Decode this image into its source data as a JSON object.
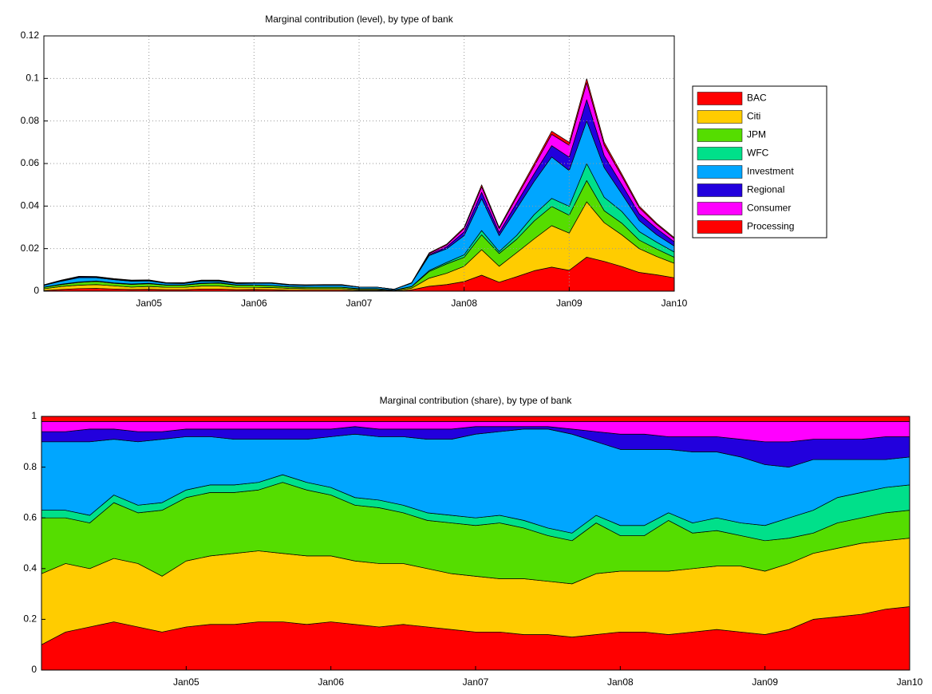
{
  "chart_data": [
    {
      "type": "area",
      "stacked": true,
      "title": "Marginal contribution (level), by type of bank",
      "x": [
        "Jan04",
        "Mar04",
        "May04",
        "Jul04",
        "Sep04",
        "Nov04",
        "Jan05",
        "Mar05",
        "May05",
        "Jul05",
        "Sep05",
        "Nov05",
        "Jan06",
        "Mar06",
        "May06",
        "Jul06",
        "Sep06",
        "Nov06",
        "Jan07",
        "Mar07",
        "May07",
        "Jul07",
        "Sep07",
        "Nov07",
        "Jan08",
        "Mar08",
        "May08",
        "Jul08",
        "Sep08",
        "Nov08",
        "Jan09",
        "Mar09",
        "May09",
        "Jul09",
        "Sep09",
        "Nov09",
        "Jan10"
      ],
      "xlim": [
        "Jan04",
        "Jan10"
      ],
      "xticks": [
        "Jan05",
        "Jan06",
        "Jan07",
        "Jan08",
        "Jan09",
        "Jan10"
      ],
      "ylim": [
        0,
        0.12
      ],
      "yticks": [
        0,
        0.02,
        0.04,
        0.06,
        0.08,
        0.1,
        0.12
      ],
      "grid": true,
      "legend": "right",
      "series": [
        {
          "name": "BAC",
          "color": "#ff0000",
          "values": [
            0.0003,
            0.0008,
            0.0012,
            0.0013,
            0.001,
            0.0008,
            0.0009,
            0.0007,
            0.0007,
            0.001,
            0.001,
            0.0007,
            0.0008,
            0.0007,
            0.0005,
            0.0005,
            0.0005,
            0.0005,
            0.0003,
            0.0003,
            0.0001,
            0.0006,
            0.0023,
            0.0031,
            0.0045,
            0.0075,
            0.0042,
            0.0068,
            0.0096,
            0.0113,
            0.0098,
            0.016,
            0.014,
            0.0116,
            0.0088,
            0.0077,
            0.0063
          ]
        },
        {
          "name": "Citi",
          "color": "#ffcc00",
          "values": [
            0.0008,
            0.0014,
            0.0016,
            0.0018,
            0.0015,
            0.0011,
            0.0013,
            0.0011,
            0.0011,
            0.0014,
            0.0014,
            0.0011,
            0.001,
            0.001,
            0.0008,
            0.0007,
            0.0007,
            0.0007,
            0.0004,
            0.0004,
            0.0002,
            0.0008,
            0.0038,
            0.0053,
            0.0072,
            0.012,
            0.0075,
            0.0113,
            0.015,
            0.0195,
            0.0175,
            0.026,
            0.0182,
            0.0149,
            0.0112,
            0.0086,
            0.0068
          ]
        },
        {
          "name": "JPM",
          "color": "#55dd00",
          "values": [
            0.0007,
            0.0009,
            0.0013,
            0.0015,
            0.0012,
            0.0013,
            0.0013,
            0.001,
            0.001,
            0.0012,
            0.0014,
            0.001,
            0.001,
            0.0009,
            0.0007,
            0.0006,
            0.0006,
            0.0006,
            0.0004,
            0.0004,
            0.0002,
            0.0007,
            0.0031,
            0.0044,
            0.0042,
            0.007,
            0.006,
            0.0063,
            0.0084,
            0.009,
            0.0084,
            0.01,
            0.0056,
            0.0055,
            0.004,
            0.0035,
            0.0028
          ]
        },
        {
          "name": "WFC",
          "color": "#00e08a",
          "values": [
            0.0001,
            0.0002,
            0.0002,
            0.0002,
            0.0002,
            0.0002,
            0.0002,
            0.0001,
            0.0001,
            0.0002,
            0.0002,
            0.0001,
            0.0001,
            0.0001,
            0.0001,
            0.0001,
            0.0001,
            0.0001,
            0.0001,
            0.0001,
            0,
            0.0001,
            0.0005,
            0.0007,
            0.0012,
            0.002,
            0.0009,
            0.0018,
            0.003,
            0.0038,
            0.0042,
            0.008,
            0.0063,
            0.0055,
            0.004,
            0.0032,
            0.0025
          ]
        },
        {
          "name": "Investment",
          "color": "#00a6ff",
          "values": [
            0.0008,
            0.0014,
            0.002,
            0.0015,
            0.0015,
            0.0013,
            0.0011,
            0.0008,
            0.0007,
            0.0009,
            0.0007,
            0.0007,
            0.0008,
            0.001,
            0.0008,
            0.0008,
            0.0009,
            0.0009,
            0.0007,
            0.0007,
            0.0004,
            0.0016,
            0.007,
            0.0064,
            0.009,
            0.015,
            0.0075,
            0.0126,
            0.0156,
            0.0195,
            0.0168,
            0.02,
            0.014,
            0.0083,
            0.0052,
            0.0035,
            0.0028
          ]
        },
        {
          "name": "Regional",
          "color": "#2200dd",
          "values": [
            0.0001,
            0.0002,
            0.0004,
            0.0003,
            0.0002,
            0.0002,
            0.0002,
            0.0001,
            0.0002,
            0.0002,
            0.0002,
            0.0002,
            0.0001,
            0.0001,
            0.0001,
            0.0001,
            0.0001,
            0.0001,
            0.0001,
            0,
            0,
            0,
            0.0004,
            0.0009,
            0.0018,
            0.003,
            0.0015,
            0.0027,
            0.0036,
            0.0053,
            0.0063,
            0.01,
            0.0056,
            0.0044,
            0.0032,
            0.0029,
            0.002
          ]
        },
        {
          "name": "Consumer",
          "color": "#ff00ff",
          "values": [
            0.0001,
            0.0002,
            0.0002,
            0.0002,
            0.0002,
            0.0002,
            0.0002,
            0.0001,
            0.0001,
            0.0002,
            0.0002,
            0.0001,
            0.0001,
            0.0001,
            0.0001,
            0.0001,
            0.0001,
            0.0001,
            0,
            0,
            0,
            0.0001,
            0.0005,
            0.0009,
            0.0015,
            0.0025,
            0.0018,
            0.0027,
            0.0036,
            0.0053,
            0.0056,
            0.008,
            0.0049,
            0.0039,
            0.0028,
            0.0019,
            0.0015
          ]
        },
        {
          "name": "Processing",
          "color": "#ff0000",
          "values": [
            0.0001,
            0.0001,
            0.0001,
            0.0001,
            0.0001,
            0.0001,
            0.0001,
            0.0001,
            0.0001,
            0.0001,
            0.0001,
            0.0001,
            0.0001,
            0.0001,
            0.0001,
            0.0001,
            0.0001,
            0.0001,
            0,
            0,
            0,
            0.0001,
            0.0004,
            0.0004,
            0.0006,
            0.001,
            0.0006,
            0.0009,
            0.0012,
            0.0015,
            0.0014,
            0.002,
            0.0014,
            0.0011,
            0.0008,
            0.0006,
            0.0005
          ]
        }
      ]
    },
    {
      "type": "area",
      "stacked": true,
      "title": "Marginal contribution (share), by type of bank",
      "x": [
        "Jan04",
        "Mar04",
        "May04",
        "Jul04",
        "Sep04",
        "Nov04",
        "Jan05",
        "Mar05",
        "May05",
        "Jul05",
        "Sep05",
        "Nov05",
        "Jan06",
        "Mar06",
        "May06",
        "Jul06",
        "Sep06",
        "Nov06",
        "Jan07",
        "Mar07",
        "May07",
        "Jul07",
        "Sep07",
        "Nov07",
        "Jan08",
        "Mar08",
        "May08",
        "Jul08",
        "Sep08",
        "Nov08",
        "Jan09",
        "Mar09",
        "May09",
        "Jul09",
        "Sep09",
        "Nov09",
        "Jan10"
      ],
      "xlim": [
        "Jan04",
        "Jan10"
      ],
      "xticks": [
        "Jan05",
        "Jan06",
        "Jan07",
        "Jan08",
        "Jan09",
        "Jan10"
      ],
      "ylim": [
        0,
        1
      ],
      "yticks": [
        0,
        0.2,
        0.4,
        0.6,
        0.8,
        1
      ],
      "grid": false,
      "legend": false,
      "series": [
        {
          "color": "#ff0000",
          "values": [
            0.1,
            0.15,
            0.17,
            0.19,
            0.17,
            0.15,
            0.17,
            0.18,
            0.18,
            0.19,
            0.19,
            0.18,
            0.19,
            0.18,
            0.17,
            0.18,
            0.17,
            0.16,
            0.15,
            0.15,
            0.14,
            0.14,
            0.13,
            0.14,
            0.15,
            0.15,
            0.14,
            0.15,
            0.16,
            0.15,
            0.14,
            0.16,
            0.2,
            0.21,
            0.22,
            0.24,
            0.25
          ]
        },
        {
          "color": "#ffcc00",
          "values": [
            0.28,
            0.27,
            0.23,
            0.25,
            0.25,
            0.22,
            0.26,
            0.27,
            0.28,
            0.28,
            0.27,
            0.27,
            0.26,
            0.25,
            0.25,
            0.24,
            0.23,
            0.22,
            0.22,
            0.21,
            0.22,
            0.21,
            0.21,
            0.24,
            0.24,
            0.24,
            0.25,
            0.25,
            0.25,
            0.26,
            0.25,
            0.26,
            0.26,
            0.27,
            0.28,
            0.27,
            0.27
          ]
        },
        {
          "color": "#55dd00",
          "values": [
            0.22,
            0.18,
            0.18,
            0.22,
            0.2,
            0.26,
            0.25,
            0.25,
            0.24,
            0.24,
            0.28,
            0.26,
            0.24,
            0.22,
            0.22,
            0.2,
            0.19,
            0.2,
            0.2,
            0.22,
            0.2,
            0.18,
            0.17,
            0.2,
            0.14,
            0.14,
            0.2,
            0.14,
            0.14,
            0.12,
            0.12,
            0.1,
            0.08,
            0.1,
            0.1,
            0.11,
            0.11
          ]
        },
        {
          "color": "#00e08a",
          "values": [
            0.03,
            0.03,
            0.03,
            0.03,
            0.03,
            0.03,
            0.03,
            0.03,
            0.03,
            0.03,
            0.03,
            0.03,
            0.03,
            0.03,
            0.03,
            0.03,
            0.03,
            0.03,
            0.03,
            0.03,
            0.03,
            0.03,
            0.03,
            0.03,
            0.04,
            0.04,
            0.03,
            0.04,
            0.05,
            0.05,
            0.06,
            0.08,
            0.09,
            0.1,
            0.1,
            0.1,
            0.1
          ]
        },
        {
          "color": "#00a6ff",
          "values": [
            0.27,
            0.27,
            0.29,
            0.22,
            0.25,
            0.25,
            0.21,
            0.19,
            0.18,
            0.17,
            0.14,
            0.17,
            0.2,
            0.25,
            0.25,
            0.27,
            0.29,
            0.3,
            0.33,
            0.33,
            0.36,
            0.39,
            0.39,
            0.29,
            0.3,
            0.3,
            0.25,
            0.28,
            0.26,
            0.26,
            0.24,
            0.2,
            0.2,
            0.15,
            0.13,
            0.11,
            0.11
          ]
        },
        {
          "color": "#2200dd",
          "values": [
            0.04,
            0.04,
            0.05,
            0.04,
            0.04,
            0.03,
            0.03,
            0.03,
            0.04,
            0.04,
            0.04,
            0.04,
            0.03,
            0.03,
            0.03,
            0.03,
            0.04,
            0.04,
            0.03,
            0.02,
            0.01,
            0.01,
            0.02,
            0.04,
            0.06,
            0.06,
            0.05,
            0.06,
            0.06,
            0.07,
            0.09,
            0.1,
            0.08,
            0.08,
            0.08,
            0.09,
            0.08
          ]
        },
        {
          "color": "#ff00ff",
          "values": [
            0.04,
            0.04,
            0.03,
            0.03,
            0.04,
            0.04,
            0.03,
            0.03,
            0.03,
            0.03,
            0.03,
            0.03,
            0.03,
            0.02,
            0.03,
            0.03,
            0.03,
            0.03,
            0.02,
            0.02,
            0.02,
            0.02,
            0.03,
            0.04,
            0.05,
            0.05,
            0.06,
            0.06,
            0.06,
            0.07,
            0.08,
            0.08,
            0.07,
            0.07,
            0.07,
            0.06,
            0.06
          ]
        },
        {
          "color": "#ff0000",
          "values": [
            0.02,
            0.02,
            0.02,
            0.02,
            0.02,
            0.02,
            0.02,
            0.02,
            0.02,
            0.02,
            0.02,
            0.02,
            0.02,
            0.02,
            0.02,
            0.02,
            0.02,
            0.02,
            0.02,
            0.02,
            0.02,
            0.02,
            0.02,
            0.02,
            0.02,
            0.02,
            0.02,
            0.02,
            0.02,
            0.02,
            0.02,
            0.02,
            0.02,
            0.02,
            0.02,
            0.02,
            0.02
          ]
        }
      ]
    }
  ]
}
